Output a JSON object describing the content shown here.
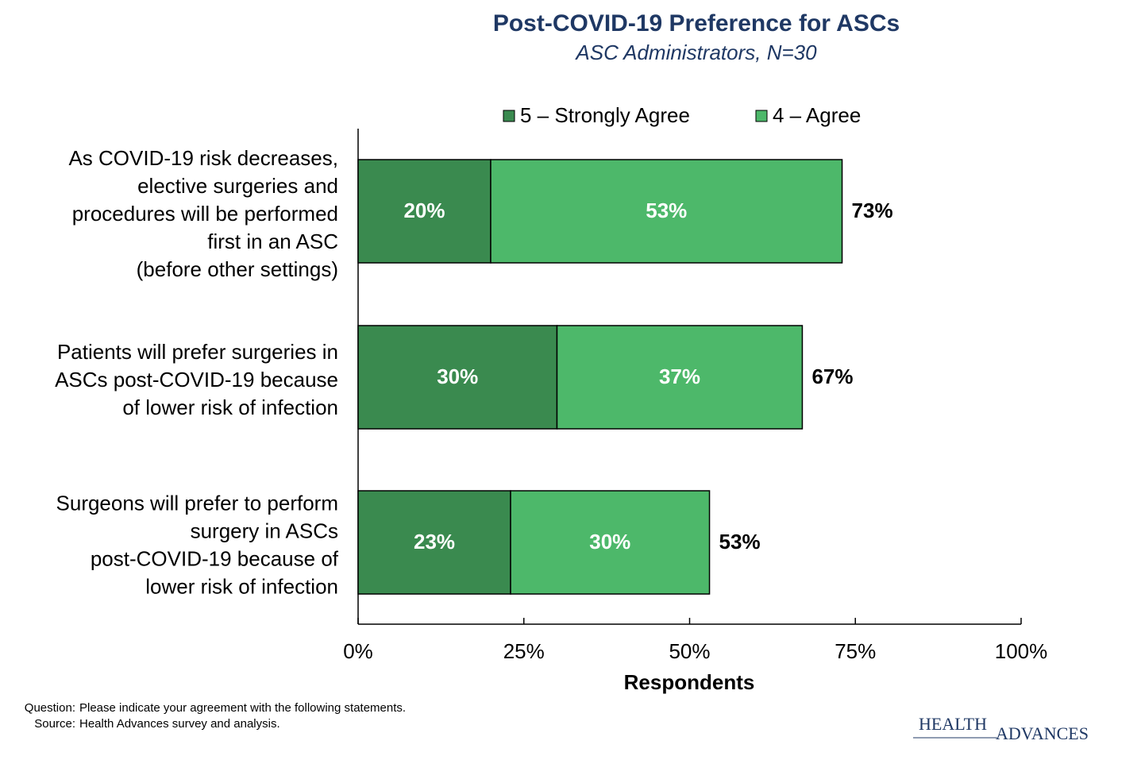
{
  "chart_data": {
    "type": "stacked-barh",
    "title": "Post-COVID-19 Preference for ASCs",
    "subtitle": "ASC Administrators, N=30",
    "categories": [
      [
        "As COVID-19 risk decreases,",
        "elective surgeries and",
        "procedures will be performed",
        "first in an ASC",
        "(before other settings)"
      ],
      [
        "Patients will prefer surgeries in",
        "ASCs post-COVID-19 because",
        "of lower risk of infection"
      ],
      [
        "Surgeons will prefer to perform",
        "surgery in ASCs",
        "post-COVID-19 because of",
        "lower risk of infection"
      ]
    ],
    "series": [
      {
        "name": "5 – Strongly Agree",
        "color": "#3a8a4f",
        "values": [
          20,
          30,
          23
        ],
        "value_labels": [
          "20%",
          "30%",
          "23%"
        ]
      },
      {
        "name": "4 – Agree",
        "color": "#4db86a",
        "values": [
          53,
          37,
          30
        ],
        "value_labels": [
          "53%",
          "37%",
          "30%"
        ]
      }
    ],
    "totals": [
      73,
      67,
      53
    ],
    "total_labels": [
      "73%",
      "67%",
      "53%"
    ],
    "xlim": [
      0,
      100
    ],
    "xticks": [
      {
        "value": 0,
        "label": "0%"
      },
      {
        "value": 25,
        "label": "25%"
      },
      {
        "value": 50,
        "label": "50%"
      },
      {
        "value": 75,
        "label": "75%"
      },
      {
        "value": 100,
        "label": "100%"
      }
    ],
    "xlabel": "Respondents",
    "legend": "top"
  },
  "footnotes": [
    {
      "label": "Question:",
      "text": "Please indicate your agreement with the following statements."
    },
    {
      "label": "Source:",
      "text": "Health Advances survey and analysis."
    }
  ],
  "logo": {
    "top": "HEALTH",
    "bottom": "ADVANCES"
  }
}
